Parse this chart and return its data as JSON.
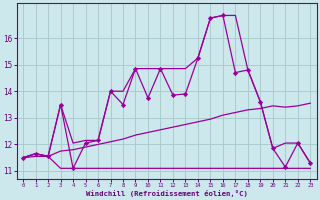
{
  "xlabel": "Windchill (Refroidissement éolien,°C)",
  "background_color": "#cce8ec",
  "grid_color": "#aacccc",
  "line_color": "#990099",
  "x": [
    0,
    1,
    2,
    3,
    4,
    5,
    6,
    7,
    8,
    9,
    10,
    11,
    12,
    13,
    14,
    15,
    16,
    17,
    18,
    19,
    20,
    21,
    22,
    23
  ],
  "y_main": [
    11.5,
    11.65,
    11.55,
    13.5,
    11.1,
    12.05,
    12.15,
    14.0,
    13.5,
    14.85,
    13.75,
    14.85,
    13.85,
    13.9,
    15.25,
    16.75,
    16.85,
    14.7,
    14.8,
    13.6,
    11.85,
    11.15,
    12.05,
    11.3
  ],
  "y_max": [
    11.5,
    11.65,
    11.55,
    13.5,
    12.05,
    12.15,
    12.15,
    14.0,
    14.0,
    14.85,
    14.85,
    14.85,
    14.85,
    14.85,
    15.25,
    16.75,
    16.85,
    16.85,
    14.8,
    13.6,
    11.85,
    12.05,
    12.05,
    11.3
  ],
  "y_min": [
    11.5,
    11.65,
    11.55,
    11.1,
    11.1,
    11.1,
    11.1,
    11.1,
    11.1,
    11.1,
    11.1,
    11.1,
    11.1,
    11.1,
    11.1,
    11.1,
    11.1,
    11.1,
    11.1,
    11.1,
    11.1,
    11.1,
    11.1,
    11.1
  ],
  "y_mean": [
    11.5,
    11.55,
    11.55,
    11.75,
    11.8,
    11.9,
    12.0,
    12.1,
    12.2,
    12.35,
    12.45,
    12.55,
    12.65,
    12.75,
    12.85,
    12.95,
    13.1,
    13.2,
    13.3,
    13.35,
    13.45,
    13.4,
    13.45,
    13.55
  ],
  "ylim": [
    10.7,
    17.3
  ],
  "yticks": [
    11,
    12,
    13,
    14,
    15,
    16
  ],
  "xlim": [
    -0.5,
    23.5
  ],
  "xticks": [
    0,
    1,
    2,
    3,
    4,
    5,
    6,
    7,
    8,
    9,
    10,
    11,
    12,
    13,
    14,
    15,
    16,
    17,
    18,
    19,
    20,
    21,
    22,
    23
  ]
}
